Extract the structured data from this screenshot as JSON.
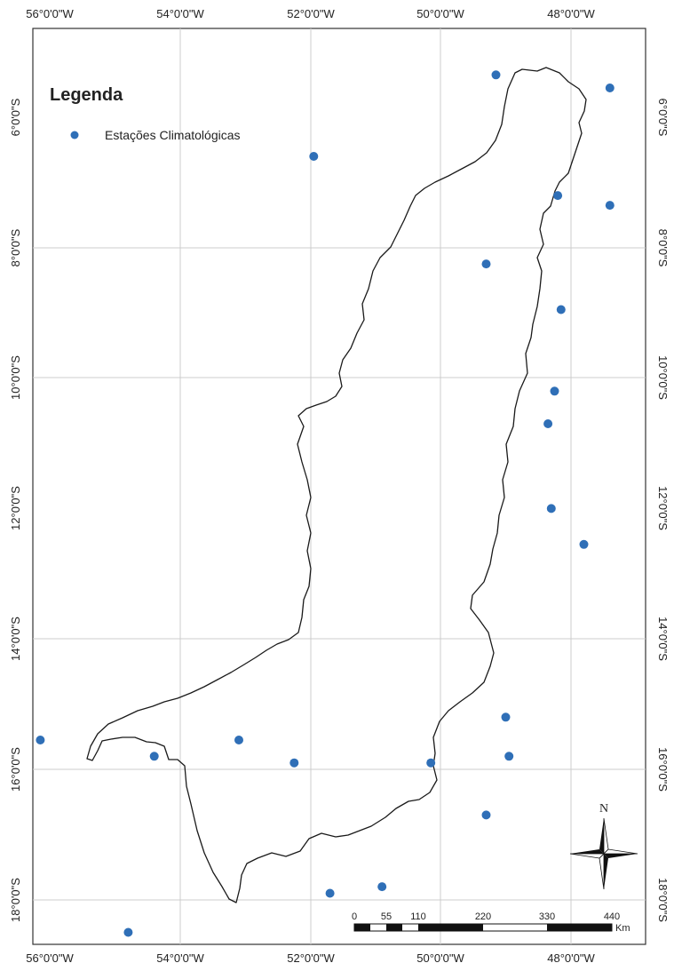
{
  "legend": {
    "title": "Legenda",
    "item_label": "Estações Climatológicas",
    "marker_color": "#2f6fb7"
  },
  "ticks": {
    "lon_labels": [
      "56°0'0\"W",
      "54°0'0\"W",
      "52°0'0\"W",
      "50°0'0\"W",
      "48°0'0\"W"
    ],
    "lat_labels": [
      "6°0'0\"S",
      "8°0'0\"S",
      "10°0'0\"S",
      "12°0'0\"S",
      "14°0'0\"S",
      "16°0'0\"S",
      "18°0'0\"S"
    ]
  },
  "scale_bar": {
    "labels": [
      "0",
      "55",
      "110",
      "220",
      "330",
      "440"
    ],
    "unit": "Km"
  },
  "north_arrow": {
    "label": "N"
  },
  "grid_color": "#cccccc",
  "boundary_color": "#1a1a1a",
  "stations": [
    {
      "lon": -49.15,
      "lat": -5.35
    },
    {
      "lon": -47.4,
      "lat": -5.55
    },
    {
      "lon": -51.95,
      "lat": -6.6
    },
    {
      "lon": -48.2,
      "lat": -7.2
    },
    {
      "lon": -47.4,
      "lat": -7.35
    },
    {
      "lon": -49.3,
      "lat": -8.25
    },
    {
      "lon": -48.15,
      "lat": -8.95
    },
    {
      "lon": -48.25,
      "lat": -10.2
    },
    {
      "lon": -48.35,
      "lat": -10.7
    },
    {
      "lon": -48.3,
      "lat": -12.0
    },
    {
      "lon": -47.8,
      "lat": -12.55
    },
    {
      "lon": -56.15,
      "lat": -15.55
    },
    {
      "lon": -53.1,
      "lat": -15.55
    },
    {
      "lon": -49.0,
      "lat": -15.2
    },
    {
      "lon": -54.4,
      "lat": -15.8
    },
    {
      "lon": -52.25,
      "lat": -15.9
    },
    {
      "lon": -50.15,
      "lat": -15.9
    },
    {
      "lon": -48.95,
      "lat": -15.8
    },
    {
      "lon": -49.3,
      "lat": -16.7
    },
    {
      "lon": -50.9,
      "lat": -17.8
    },
    {
      "lon": -51.7,
      "lat": -17.9
    },
    {
      "lon": -54.8,
      "lat": -18.5
    }
  ]
}
